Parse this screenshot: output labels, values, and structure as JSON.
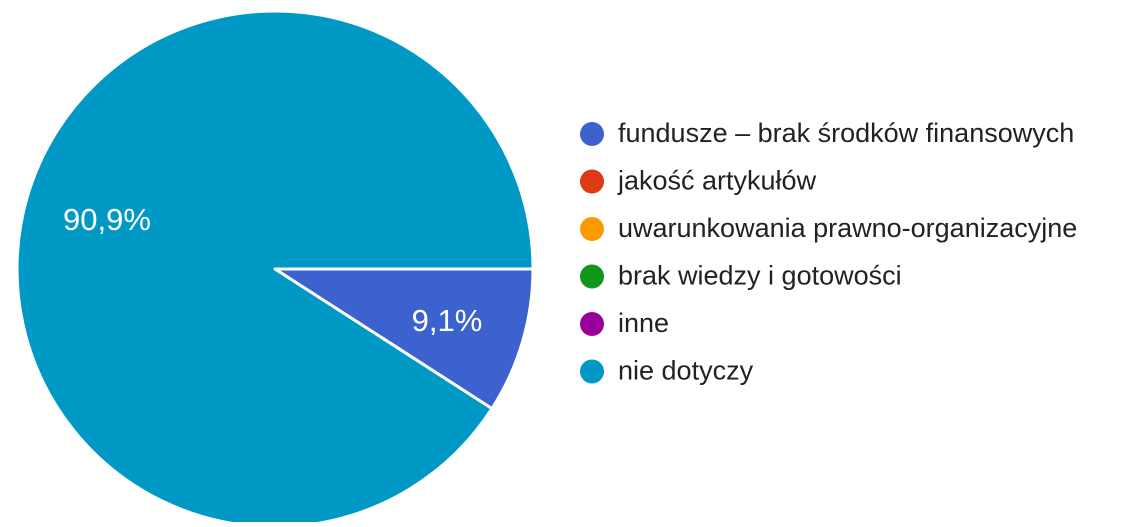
{
  "chart_data": {
    "type": "pie",
    "title": "",
    "slices": [
      {
        "label": "fundusze – brak środków finansowych",
        "value": 9.1,
        "display": "9,1%",
        "color": "#3b62cf"
      },
      {
        "label": "jakość artykułów",
        "value": 0,
        "display": "",
        "color": "#dc3a12"
      },
      {
        "label": "uwarunkowania prawno-organizacyjne",
        "value": 0,
        "display": "",
        "color": "#ff9900"
      },
      {
        "label": "brak wiedzy i gotowości",
        "value": 0,
        "display": "",
        "color": "#109619"
      },
      {
        "label": "inne",
        "value": 0,
        "display": "",
        "color": "#990099"
      },
      {
        "label": "nie dotyczy",
        "value": 90.9,
        "display": "90,9%",
        "color": "#0099c6"
      }
    ],
    "legend_position": "right"
  }
}
